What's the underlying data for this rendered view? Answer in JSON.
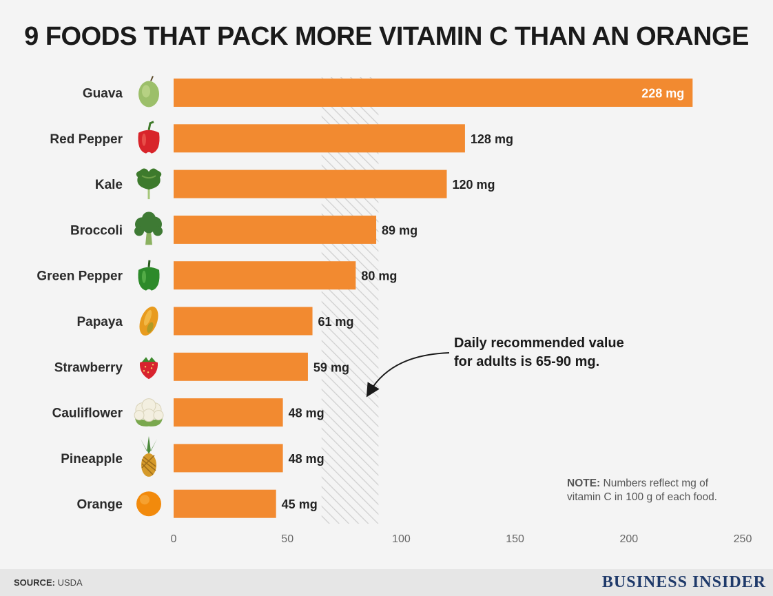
{
  "title": "9 FOODS THAT PACK MORE VITAMIN C THAN AN ORANGE",
  "chart_data": {
    "type": "bar",
    "orientation": "horizontal",
    "title": "9 FOODS THAT PACK MORE VITAMIN C THAN AN ORANGE",
    "categories": [
      "Guava",
      "Red Pepper",
      "Kale",
      "Broccoli",
      "Green Pepper",
      "Papaya",
      "Strawberry",
      "Cauliflower",
      "Pineapple",
      "Orange"
    ],
    "values": [
      228,
      128,
      120,
      89,
      80,
      61,
      59,
      48,
      48,
      45
    ],
    "value_labels": [
      "228 mg",
      "128 mg",
      "120 mg",
      "89 mg",
      "80 mg",
      "61 mg",
      "59 mg",
      "48 mg",
      "48 mg",
      "45 mg"
    ],
    "icons": [
      "guava-icon",
      "red-pepper-icon",
      "kale-icon",
      "broccoli-icon",
      "green-pepper-icon",
      "papaya-icon",
      "strawberry-icon",
      "cauliflower-icon",
      "pineapple-icon",
      "orange-icon"
    ],
    "xlim": [
      0,
      250
    ],
    "xticks": [
      0,
      50,
      100,
      150,
      200,
      250
    ],
    "grid": false,
    "bar_color": "#f28a30",
    "recommended_range": [
      65,
      90
    ]
  },
  "annotation": {
    "line1": "Daily recommended value",
    "line2": "for adults is 65-90 mg."
  },
  "note": {
    "label": "NOTE:",
    "line1": "Numbers reflect mg of",
    "line2": "vitamin C in 100 g of each food."
  },
  "footer": {
    "source_label": "SOURCE:",
    "source_value": "USDA",
    "brand": "BUSINESS INSIDER"
  }
}
